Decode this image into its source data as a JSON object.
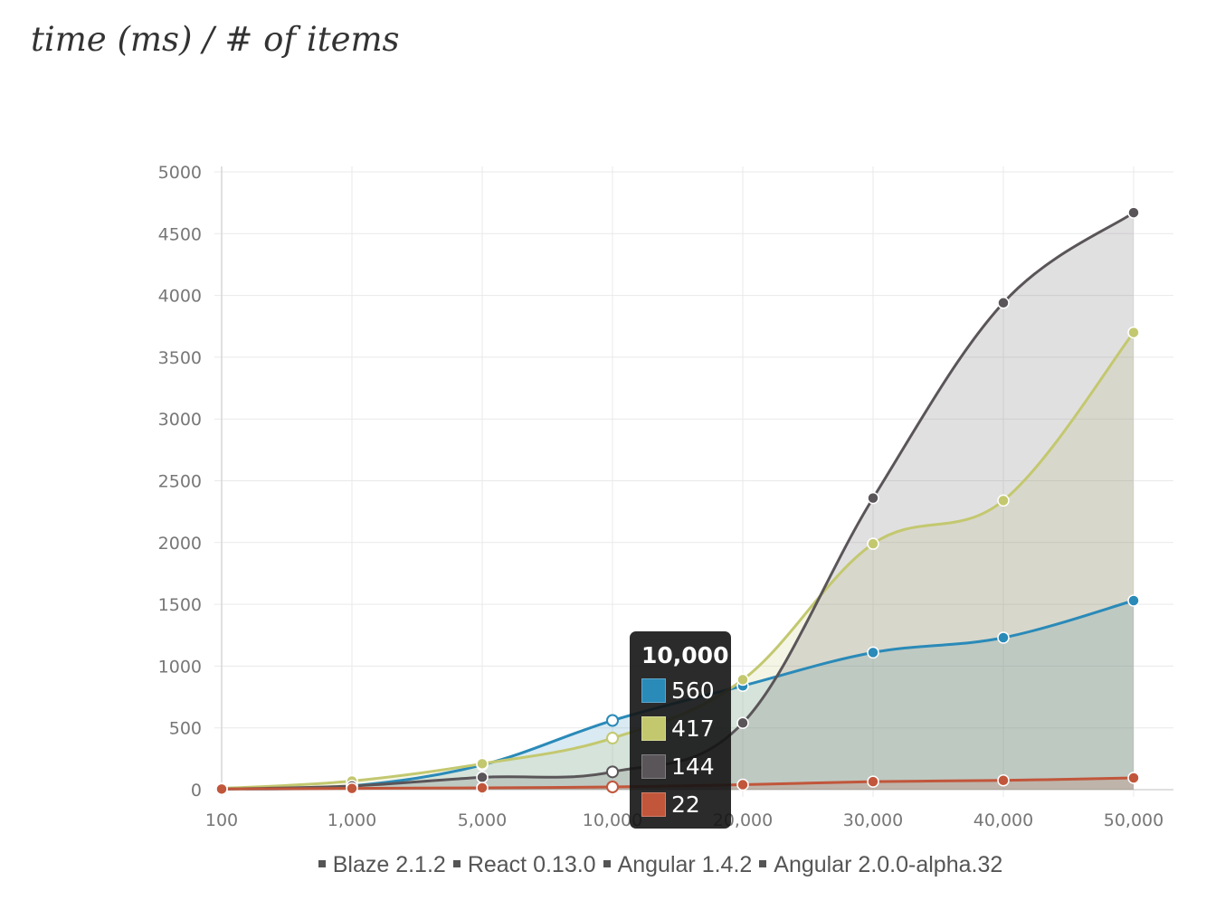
{
  "page": {
    "title": "time (ms) / # of items"
  },
  "colors": {
    "blaze": "#2a8ab8",
    "react": "#c3c86f",
    "angular14": "#5a5558",
    "angular2": "#c1563b",
    "grid": "#e9e9e9",
    "axis": "#d6d6d6"
  },
  "chart_data": {
    "type": "area",
    "categories": [
      "100",
      "1,000",
      "5,000",
      "10,000",
      "20,000",
      "30,000",
      "40,000",
      "50,000"
    ],
    "ylim": [
      0,
      5000
    ],
    "yticks": [
      "0",
      "500",
      "1000",
      "1500",
      "2000",
      "2500",
      "3000",
      "3500",
      "4000",
      "4500",
      "5000"
    ],
    "grid": true,
    "legend_position": "bottom",
    "series": [
      {
        "name": "Blaze 2.1.2",
        "color": "#2a8ab8",
        "values": [
          5,
          30,
          200,
          560,
          840,
          1110,
          1230,
          1530
        ]
      },
      {
        "name": "React 0.13.0",
        "color": "#c3c86f",
        "values": [
          10,
          70,
          210,
          417,
          890,
          1990,
          2340,
          3700
        ]
      },
      {
        "name": "Angular 1.4.2",
        "color": "#5a5558",
        "values": [
          5,
          30,
          100,
          144,
          540,
          2360,
          3940,
          4670
        ]
      },
      {
        "name": "Angular 2.0.0-alpha.32",
        "color": "#c1563b",
        "values": [
          5,
          10,
          15,
          22,
          40,
          65,
          75,
          95
        ]
      }
    ]
  },
  "tooltip": {
    "title": "10,000",
    "rows": [
      {
        "value": "560",
        "color": "#2a8ab8"
      },
      {
        "value": "417",
        "color": "#c3c86f"
      },
      {
        "value": "144",
        "color": "#5a5558"
      },
      {
        "value": "22",
        "color": "#c1563b"
      }
    ]
  },
  "legend": {
    "items": [
      {
        "label": "Blaze 2.1.2"
      },
      {
        "label": "React 0.13.0"
      },
      {
        "label": "Angular 1.4.2"
      },
      {
        "label": "Angular 2.0.0-alpha.32"
      }
    ]
  }
}
